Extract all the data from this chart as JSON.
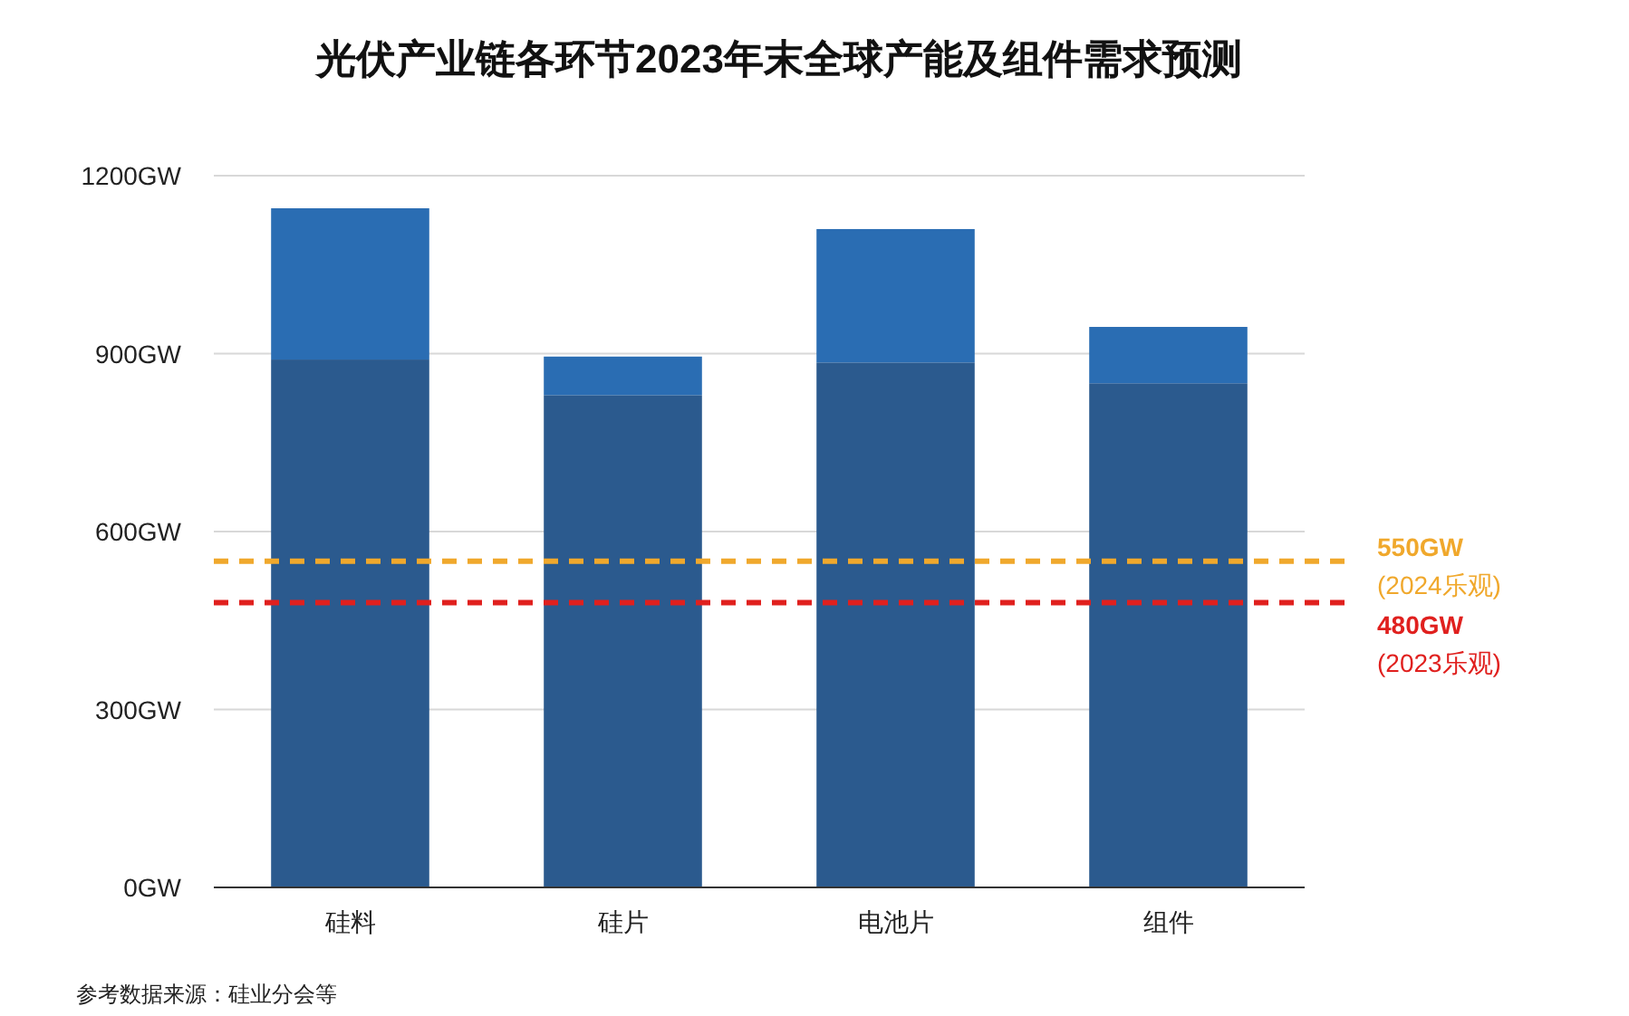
{
  "chart_data": {
    "type": "bar",
    "title": "光伏产业链各环节2023年末全球产能及组件需求预测",
    "categories": [
      "硅料",
      "硅片",
      "电池片",
      "组件"
    ],
    "stacked": true,
    "series": [
      {
        "color": "#2b5a8e",
        "values": [
          890,
          830,
          885,
          850
        ]
      },
      {
        "color": "#2a6db3",
        "values": [
          255,
          65,
          225,
          95
        ]
      }
    ],
    "ylim": [
      0,
      1200
    ],
    "yticks": [
      {
        "value": 0,
        "label": "0GW"
      },
      {
        "value": 300,
        "label": "300GW"
      },
      {
        "value": 600,
        "label": "600GW"
      },
      {
        "value": 900,
        "label": "900GW"
      },
      {
        "value": 1200,
        "label": "1200GW"
      }
    ],
    "grid": "y",
    "ref_lines": [
      {
        "axis": "y",
        "value": 550,
        "label": "550GW (2024乐观)",
        "color": "#f0a82c",
        "line_style": "dashed"
      },
      {
        "axis": "y",
        "value": 480,
        "label": "480GW (2023乐观)",
        "color": "#e0201e",
        "line_style": "dashed"
      }
    ],
    "annotations": [
      "参考数据来源：硅业分会等"
    ]
  }
}
